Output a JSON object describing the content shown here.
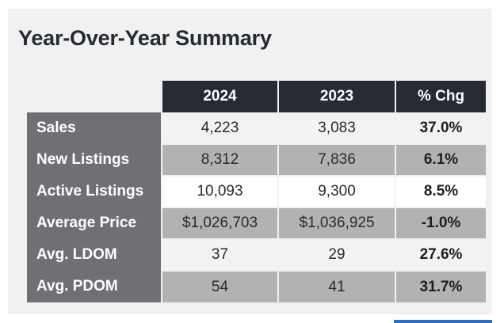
{
  "title": "Year-Over-Year Summary",
  "columns": [
    "2024",
    "2023",
    "% Chg"
  ],
  "rows": [
    {
      "label": "Sales",
      "values": [
        "4,223",
        "3,083",
        "37.0%"
      ]
    },
    {
      "label": "New Listings",
      "values": [
        "8,312",
        "7,836",
        "6.1%"
      ]
    },
    {
      "label": "Active Listings",
      "values": [
        "10,093",
        "9,300",
        "8.5%"
      ]
    },
    {
      "label": "Average Price",
      "values": [
        "$1,026,703",
        "$1,036,925",
        "-1.0%"
      ]
    },
    {
      "label": "Avg. LDOM",
      "values": [
        "37",
        "29",
        "27.6%"
      ]
    },
    {
      "label": "Avg. PDOM",
      "values": [
        "54",
        "41",
        "31.7%"
      ]
    }
  ],
  "colors": {
    "header_bg": "#252a33",
    "row_label_bg": "#6e7076",
    "row_light": "#f3f3f3",
    "row_dark": "#b2b2b2",
    "accent": "#2f6fc0"
  }
}
